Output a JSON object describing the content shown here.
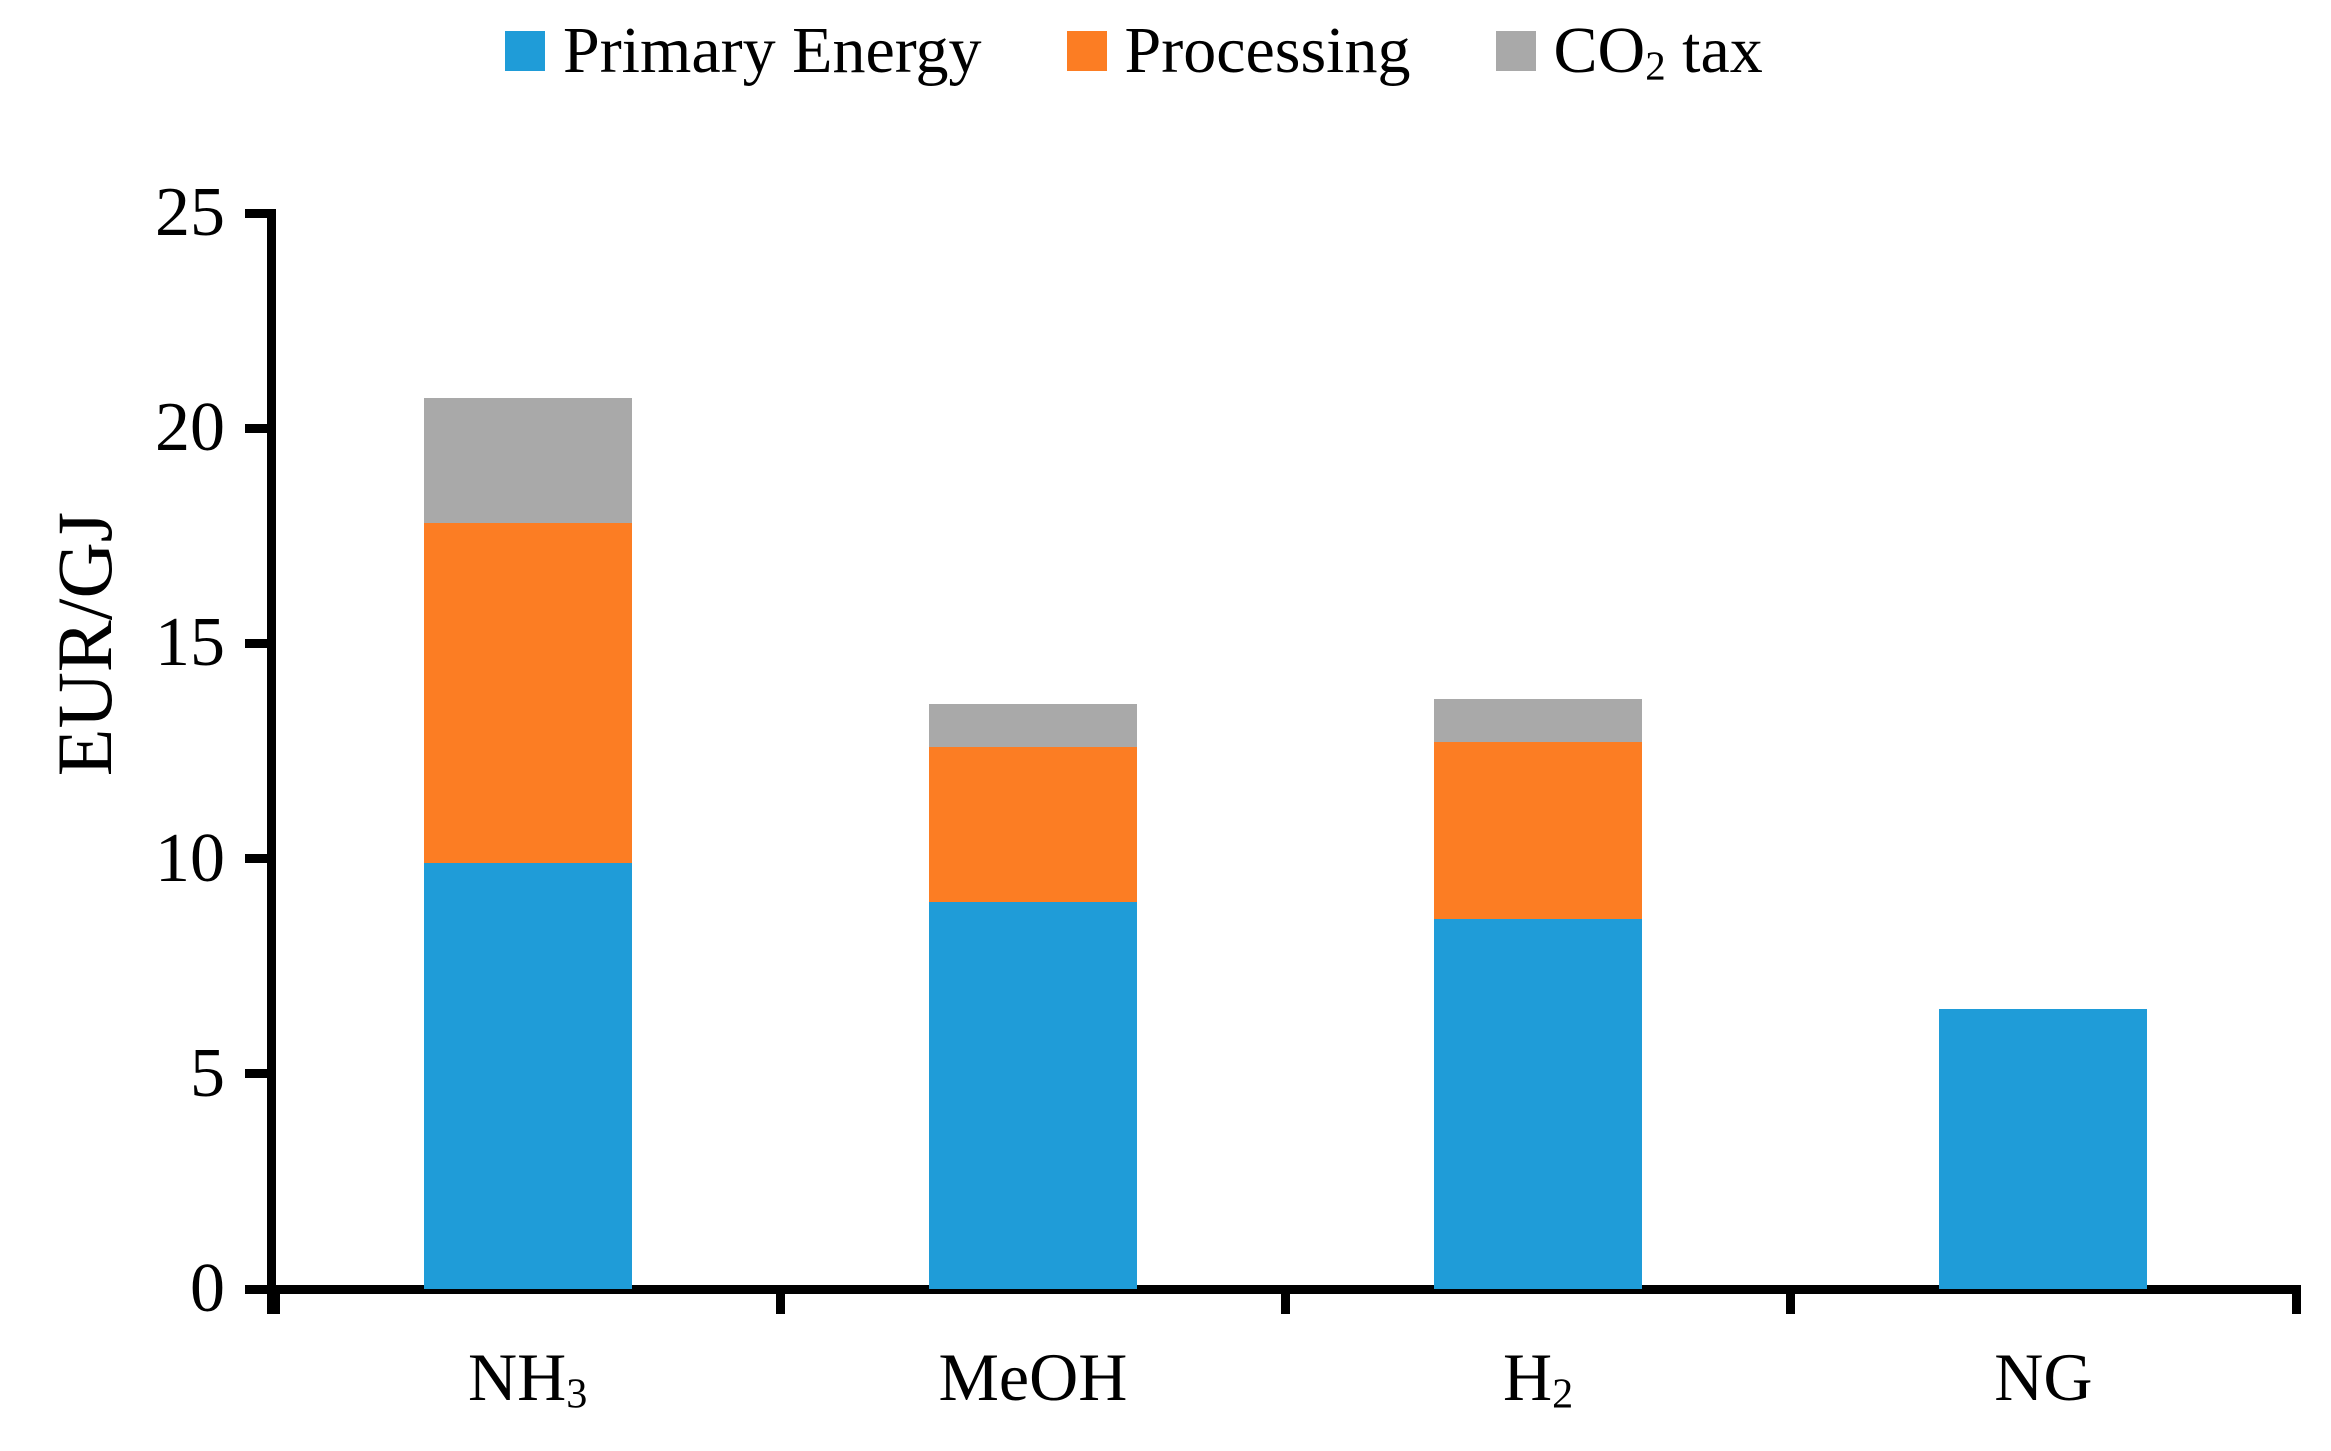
{
  "chart_data": {
    "type": "bar",
    "stacked": true,
    "title": "",
    "categories": [
      "NH₃",
      "MeOH",
      "H₂",
      "NG"
    ],
    "series": [
      {
        "name": "Primary Energy",
        "color": "#1F9CD8",
        "values": [
          9.9,
          9.0,
          8.6,
          6.5
        ]
      },
      {
        "name": "Processing",
        "color": "#FC7D23",
        "values": [
          7.9,
          3.6,
          4.1,
          0
        ]
      },
      {
        "name": "CO₂ tax",
        "color": "#A9A9A9",
        "values": [
          2.9,
          1.0,
          1.0,
          0
        ]
      }
    ],
    "totals": [
      20.7,
      13.6,
      13.7,
      6.5
    ],
    "xlabel": "",
    "ylabel": "EUR/GJ",
    "ylim": [
      0,
      25
    ],
    "yticks": [
      0,
      5,
      10,
      15,
      20,
      25
    ],
    "grid": false,
    "legend_position": "top",
    "axis_color": "#000000",
    "background_color": "#FFFFFF"
  }
}
